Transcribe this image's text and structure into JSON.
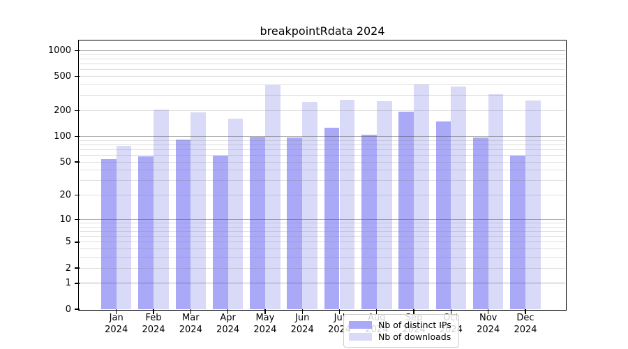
{
  "chart_data": {
    "type": "bar",
    "title": "breakpointRdata 2024",
    "categories": [
      "Jan",
      "Feb",
      "Mar",
      "Apr",
      "May",
      "Jun",
      "Jul",
      "Aug",
      "Sep",
      "Oct",
      "Nov",
      "Dec"
    ],
    "x_tick_year": "2024",
    "series": [
      {
        "name": "Nb of distinct IPs",
        "color": "#a9a9f8",
        "values": [
          54,
          58,
          92,
          59,
          99,
          97,
          126,
          104,
          196,
          150,
          97,
          59
        ]
      },
      {
        "name": "Nb of downloads",
        "color": "#d9d9f8",
        "values": [
          78,
          206,
          190,
          162,
          400,
          255,
          270,
          260,
          405,
          380,
          310,
          262
        ]
      }
    ],
    "y_axis": {
      "ticks": [
        0,
        1,
        2,
        5,
        10,
        20,
        50,
        100,
        200,
        500,
        1000
      ],
      "scale": "log10(value+1)",
      "max": 1288
    },
    "grid": {
      "on": true,
      "major_values": [
        1,
        10,
        100,
        1000
      ],
      "minor_color": "rgba(128,128,128,0.25)",
      "major_color": "rgba(70,70,70,0.42)"
    },
    "legend": {
      "position": "bottom-center-inside"
    },
    "frame_color": "#000000",
    "background": "#ffffff"
  }
}
